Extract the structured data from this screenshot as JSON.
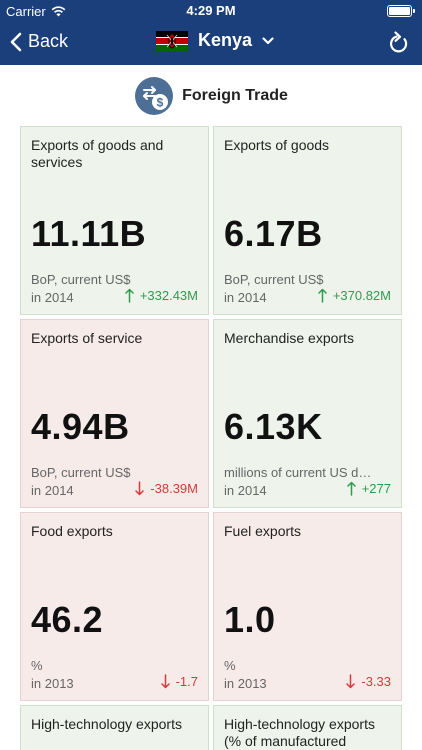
{
  "status_bar": {
    "carrier": "Carrier",
    "time": "4:29 PM"
  },
  "nav": {
    "back_label": "Back",
    "country": "Kenya"
  },
  "section": {
    "title": "Foreign Trade"
  },
  "colors": {
    "header_bg": "#1b3f7a",
    "positive": "#2e9b4e",
    "negative": "#d23b3b",
    "card_up_bg": "#eef4ec",
    "card_down_bg": "#f7ebea"
  },
  "cards": [
    {
      "title": "Exports of goods and services",
      "value": "11.11B",
      "unit": "BoP, current US$",
      "year": "in 2014",
      "change": "+332.43M",
      "trend": "up"
    },
    {
      "title": "Exports of goods",
      "value": "6.17B",
      "unit": "BoP, current US$",
      "year": "in 2014",
      "change": "+370.82M",
      "trend": "up"
    },
    {
      "title": "Exports of service",
      "value": "4.94B",
      "unit": "BoP, current US$",
      "year": "in 2014",
      "change": "-38.39M",
      "trend": "down"
    },
    {
      "title": "Merchandise exports",
      "value": "6.13K",
      "unit": "millions of current US d…",
      "year": "in 2014",
      "change": "+277",
      "trend": "up"
    },
    {
      "title": "Food exports",
      "value": "46.2",
      "unit": "%",
      "year": "in 2013",
      "change": "-1.7",
      "trend": "down"
    },
    {
      "title": "Fuel exports",
      "value": "1.0",
      "unit": "%",
      "year": "in 2013",
      "change": "-3.33",
      "trend": "down"
    },
    {
      "title": "High-technology exports",
      "trend": "up"
    },
    {
      "title": "High-technology exports (% of manufactured",
      "trend": "up"
    }
  ]
}
